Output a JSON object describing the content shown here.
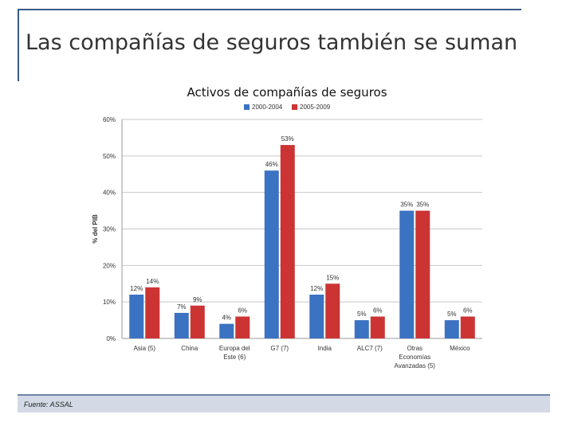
{
  "slide": {
    "title": "Las compañías de seguros también se suman",
    "footer": "Fuente: ASSAL"
  },
  "chart_data": {
    "type": "bar",
    "title": "Activos de compañías de seguros",
    "ylabel": "% del PIB",
    "xlabel": "",
    "ylim": [
      0,
      60
    ],
    "yticks": [
      "0%",
      "10%",
      "20%",
      "30%",
      "40%",
      "50%",
      "60%"
    ],
    "grid": true,
    "legend_position": "top",
    "categories": [
      [
        "Asia (5)"
      ],
      [
        "China"
      ],
      [
        "Europa del",
        "Este (6)"
      ],
      [
        "G7 (7)"
      ],
      [
        "India"
      ],
      [
        "ALC7 (7)"
      ],
      [
        "Otras",
        "Economías",
        "Avanzadas (5)"
      ],
      [
        "México"
      ]
    ],
    "series": [
      {
        "name": "2000-2004",
        "color": "#3c72c2",
        "values": [
          12,
          7,
          4,
          46,
          12,
          5,
          35,
          5
        ],
        "labels": [
          "12%",
          "7%",
          "4%",
          "46%",
          "12%",
          "5%",
          "35%",
          "5%"
        ]
      },
      {
        "name": "2005-2009",
        "color": "#cc3434",
        "values": [
          14,
          9,
          6,
          53,
          15,
          6,
          35,
          6
        ],
        "labels": [
          "14%",
          "9%",
          "6%",
          "53%",
          "15%",
          "6%",
          "35%",
          "6%"
        ]
      }
    ]
  }
}
